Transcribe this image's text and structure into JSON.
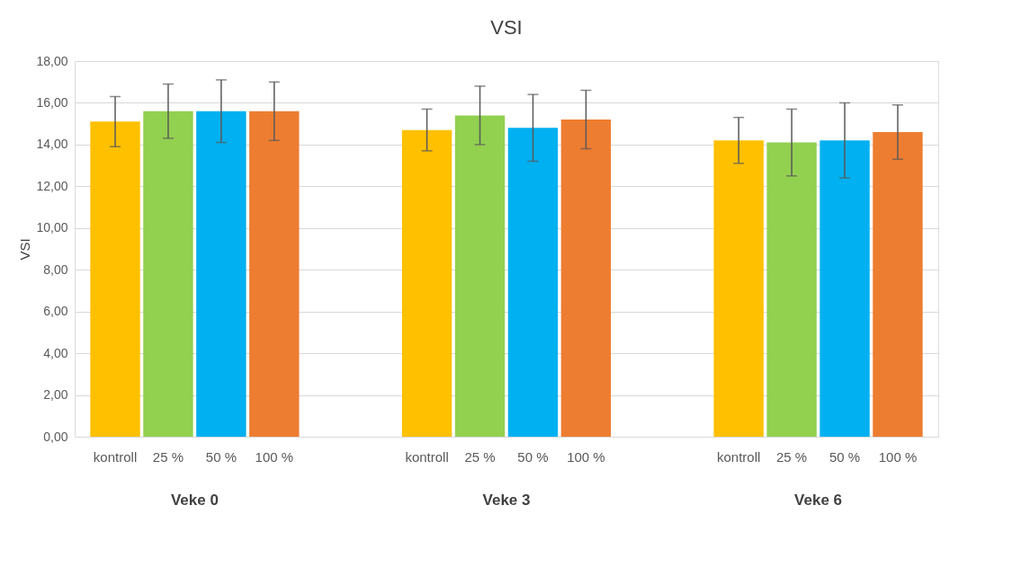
{
  "chart_data": {
    "type": "bar",
    "title": "VSI",
    "ylabel": "VSI",
    "categories": [
      "Veke 0",
      "Veke 3",
      "Veke 6"
    ],
    "series": [
      {
        "name": "kontroll",
        "color": "#ffc000",
        "values": [
          15.1,
          14.7,
          14.2
        ],
        "errors": [
          1.2,
          1.0,
          1.1
        ]
      },
      {
        "name": "25 %",
        "color": "#92d050",
        "values": [
          15.6,
          15.4,
          14.1
        ],
        "errors": [
          1.3,
          1.4,
          1.6
        ]
      },
      {
        "name": "50 %",
        "color": "#00b0f0",
        "values": [
          15.6,
          14.8,
          14.2
        ],
        "errors": [
          1.5,
          1.6,
          1.8
        ]
      },
      {
        "name": "100 %",
        "color": "#ed7d31",
        "values": [
          15.6,
          15.2,
          14.6
        ],
        "errors": [
          1.4,
          1.4,
          1.3
        ]
      }
    ],
    "ylim": [
      0,
      18
    ],
    "yticks": [
      {
        "value": 0,
        "label": "0,00"
      },
      {
        "value": 2,
        "label": "2,00"
      },
      {
        "value": 4,
        "label": "4,00"
      },
      {
        "value": 6,
        "label": "6,00"
      },
      {
        "value": 8,
        "label": "8,00"
      },
      {
        "value": 10,
        "label": "10,00"
      },
      {
        "value": 12,
        "label": "12,00"
      },
      {
        "value": 14,
        "label": "14,00"
      },
      {
        "value": 16,
        "label": "16,00"
      },
      {
        "value": 18,
        "label": "18,00"
      }
    ],
    "grid": "y",
    "legend": false
  }
}
